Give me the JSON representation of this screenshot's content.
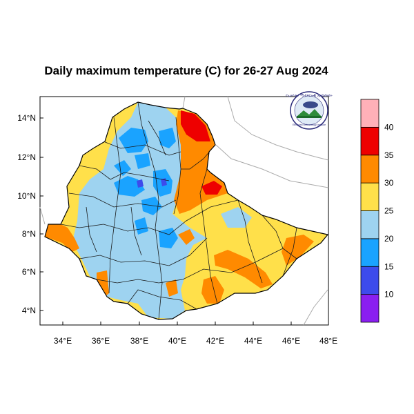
{
  "title": "Daily maximum temperature (C) for 26-27 Aug 2024",
  "lon_ticks": [
    "34°E",
    "36°E",
    "38°E",
    "40°E",
    "42°E",
    "44°E",
    "46°E",
    "48°E"
  ],
  "lat_ticks": [
    "14°N",
    "12°N",
    "10°N",
    "8°N",
    "6°N",
    "4°N"
  ],
  "colorbar": {
    "labels": [
      "10",
      "15",
      "20",
      "25",
      "30",
      "35",
      "40"
    ],
    "colors": [
      "#8a1ff0",
      "#3d4bec",
      "#1aa3ff",
      "#9ed3f0",
      "#ffe04a",
      "#ff8a00",
      "#ee0000",
      "#ffb0b8"
    ]
  },
  "palette": {
    "very_hot": "#ee0000",
    "hot": "#ff8a00",
    "warm": "#ffe04a",
    "mild": "#9ed3f0",
    "cool": "#1aa3ff",
    "cold": "#3d4bec"
  },
  "logo": {
    "ring_text": "የኢትዮጵያ ሚቲዎሮሎጂ ኢንስቲትዩት",
    "name": "Ethiopian Meteorology Institute"
  }
}
